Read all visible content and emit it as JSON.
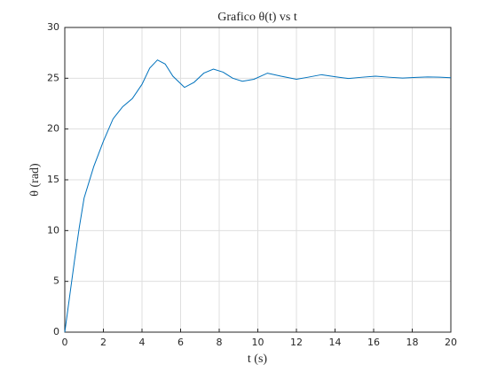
{
  "chart_data": {
    "type": "line",
    "title": "Grafico θ(t) vs t",
    "x_label": "t (s)",
    "y_label": "θ (rad)",
    "x": [
      0,
      0.25,
      0.5,
      0.75,
      1,
      1.5,
      2,
      2.5,
      3,
      3.5,
      4,
      4.4,
      4.8,
      5.2,
      5.6,
      6.2,
      6.7,
      7.2,
      7.7,
      8.2,
      8.7,
      9.2,
      9.8,
      10.5,
      11.2,
      12,
      12.6,
      13.3,
      14,
      14.7,
      15.4,
      16.1,
      16.8,
      17.5,
      18.2,
      18.8,
      19.4,
      20
    ],
    "series": [
      {
        "name": "θ(t)",
        "color": "#0072bd",
        "values": [
          0,
          3.5,
          7,
          10.3,
          13.2,
          16.3,
          18.8,
          21.0,
          22.2,
          23.0,
          24.4,
          26.0,
          26.8,
          26.4,
          25.2,
          24.1,
          24.6,
          25.5,
          25.9,
          25.6,
          25.0,
          24.7,
          24.9,
          25.5,
          25.2,
          24.9,
          25.1,
          25.35,
          25.15,
          24.97,
          25.1,
          25.2,
          25.1,
          25.02,
          25.08,
          25.13,
          25.1,
          25.05
        ]
      }
    ],
    "xlim": [
      0,
      20
    ],
    "ylim": [
      0,
      30
    ],
    "xticks": [
      0,
      2,
      4,
      6,
      8,
      10,
      12,
      14,
      16,
      18,
      20
    ],
    "yticks": [
      0,
      5,
      10,
      15,
      20,
      25,
      30
    ],
    "grid": true
  }
}
